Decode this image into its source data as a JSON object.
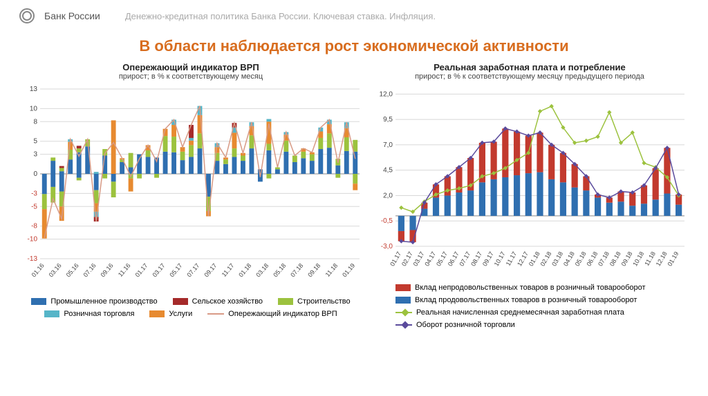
{
  "header": {
    "bank": "Банк России",
    "breadcrumb": "Денежно-кредитная политика Банка России. Ключевая ставка. Инфляция."
  },
  "main_title": "В области наблюдается рост экономической активности",
  "left_chart": {
    "type": "stacked_bar_with_line",
    "title": "Опережающий индикатор ВРП",
    "subtitle": "прирост; в % к соответствующему месяц",
    "x_labels": [
      "01.16",
      "03.16",
      "05.16",
      "07.16",
      "09.16",
      "11.16",
      "01.17",
      "03.17",
      "05.17",
      "07.17",
      "09.17",
      "11.17",
      "01.18",
      "03.18",
      "05.18",
      "07.18",
      "09.18",
      "11.18",
      "01.19"
    ],
    "y_ticks": [
      13,
      10,
      8,
      5,
      3,
      0,
      -3,
      -5,
      -8,
      -10,
      -13
    ],
    "y_min": -13,
    "y_max": 13,
    "background_color": "#ffffff",
    "grid_color": "#d8d8d8",
    "axis_label_fontsize": 10,
    "n_bars": 37,
    "bar_width": 0.55,
    "pos_segments_colors": [
      "#2f6fb0",
      "#9cc23e",
      "#e78a30",
      "#56b5c8",
      "#a52a2a"
    ],
    "neg_segments_colors": [
      "#2f6fb0",
      "#9cc23e",
      "#e78a30",
      "#56b5c8",
      "#a52a2a"
    ],
    "line_color": "#d89a85",
    "line_width": 1.5,
    "bars_pos": [
      [
        0,
        0,
        0,
        0,
        0
      ],
      [
        2,
        0.5,
        0,
        0,
        0
      ],
      [
        0.4,
        0.5,
        0,
        0,
        0.3
      ],
      [
        2.2,
        1.5,
        1.2,
        0.4,
        0
      ],
      [
        3.3,
        0.6,
        0,
        0,
        0.4
      ],
      [
        4.2,
        1.1,
        0,
        0,
        0
      ],
      [
        0,
        0,
        0,
        0.3,
        0
      ],
      [
        2.8,
        1.0,
        0,
        0,
        0
      ],
      [
        0,
        0,
        8.2,
        0,
        0
      ],
      [
        1.8,
        0.4,
        0.2,
        0,
        0
      ],
      [
        1.0,
        2.2,
        0,
        0,
        0
      ],
      [
        3.0,
        0,
        0,
        0,
        0
      ],
      [
        2.6,
        1.0,
        0.8,
        0,
        0
      ],
      [
        2.5,
        0,
        0,
        0,
        0
      ],
      [
        3.4,
        2.4,
        1.1,
        0,
        0
      ],
      [
        3.3,
        2.4,
        1.8,
        0.8,
        0
      ],
      [
        2.1,
        1.3,
        0.7,
        0,
        0
      ],
      [
        2.6,
        1.8,
        0.7,
        0.4,
        2.0
      ],
      [
        3.9,
        2.3,
        2.8,
        1.4,
        0
      ],
      [
        0,
        0,
        0,
        0,
        0
      ],
      [
        2.0,
        1.2,
        0.9,
        0.6,
        0
      ],
      [
        1.5,
        0.7,
        0.3,
        0,
        0
      ],
      [
        2.6,
        1.3,
        2.4,
        0.8,
        0.7
      ],
      [
        2.0,
        0.8,
        0.4,
        0,
        0
      ],
      [
        3.9,
        2.0,
        1.4,
        0.6,
        0
      ],
      [
        0.7,
        0,
        0,
        0,
        0
      ],
      [
        3.6,
        1.0,
        3.4,
        0.4,
        0
      ],
      [
        0.7,
        0.3,
        0,
        0,
        0
      ],
      [
        3.4,
        1.7,
        0.9,
        0.4,
        0
      ],
      [
        1.8,
        1.0,
        0,
        0,
        0
      ],
      [
        2.4,
        1.0,
        0.5,
        0,
        0
      ],
      [
        2.0,
        1.0,
        0.3,
        0,
        0
      ],
      [
        3.8,
        1.7,
        1.0,
        0.6,
        0
      ],
      [
        4.0,
        2.2,
        1.4,
        0.7,
        0
      ],
      [
        1.3,
        1.0,
        0,
        0,
        0
      ],
      [
        3.5,
        2.1,
        1.4,
        0.9,
        0
      ],
      [
        3.4,
        1.8,
        0,
        0,
        0
      ]
    ],
    "bars_neg": [
      [
        3.1,
        2.3,
        4.5,
        0,
        0
      ],
      [
        2.0,
        2.4,
        0,
        0,
        0
      ],
      [
        2.7,
        2.3,
        2.2,
        0,
        0
      ],
      [
        0,
        0,
        0,
        0,
        0
      ],
      [
        0.6,
        0.4,
        0,
        0,
        0
      ],
      [
        0,
        0,
        0,
        0,
        0
      ],
      [
        2.5,
        2.0,
        1.3,
        0.8,
        0.7
      ],
      [
        0,
        0.7,
        0,
        0,
        0
      ],
      [
        1.2,
        2.4,
        0,
        0,
        0
      ],
      [
        0,
        0,
        0,
        0,
        0
      ],
      [
        0,
        0.7,
        2.0,
        0,
        0
      ],
      [
        0,
        0.7,
        0,
        0,
        0
      ],
      [
        0,
        0,
        0,
        0,
        0
      ],
      [
        0,
        0.6,
        0,
        0,
        0
      ],
      [
        0,
        0,
        0,
        0,
        0
      ],
      [
        0,
        0,
        0,
        0,
        0
      ],
      [
        0,
        0,
        0,
        0,
        0
      ],
      [
        0,
        0,
        0,
        0,
        0
      ],
      [
        0,
        0,
        0,
        0,
        0
      ],
      [
        3.5,
        2.2,
        0.8,
        0,
        0
      ],
      [
        0,
        0,
        0,
        0,
        0
      ],
      [
        0,
        0,
        0,
        0,
        0
      ],
      [
        0,
        0,
        0,
        0,
        0
      ],
      [
        0,
        0,
        0,
        0,
        0
      ],
      [
        0,
        0,
        0,
        0,
        0
      ],
      [
        1.2,
        0,
        0,
        0,
        0
      ],
      [
        0,
        0.7,
        0,
        0,
        0
      ],
      [
        0,
        0,
        0,
        0,
        0
      ],
      [
        0,
        0,
        0,
        0,
        0
      ],
      [
        0,
        0,
        0,
        0,
        0
      ],
      [
        0,
        0,
        0,
        0,
        0
      ],
      [
        0,
        0,
        0,
        0,
        0
      ],
      [
        0,
        0,
        0,
        0,
        0
      ],
      [
        0,
        0,
        0,
        0,
        0
      ],
      [
        0,
        0.6,
        0,
        0,
        0
      ],
      [
        0,
        0,
        0,
        0,
        0
      ],
      [
        0,
        1.5,
        1.0,
        0,
        0
      ]
    ],
    "line": [
      -9.8,
      -3.8,
      -6.9,
      5.3,
      2.7,
      5.3,
      -7.3,
      3.1,
      4.8,
      2.4,
      -0.4,
      2.3,
      4.4,
      1.9,
      6.9,
      8.3,
      4.1,
      7.5,
      10.4,
      -6.5,
      4.7,
      2.5,
      7.8,
      3.2,
      7.9,
      -0.5,
      7.7,
      1.0,
      6.4,
      2.8,
      3.9,
      3.3,
      7.1,
      8.3,
      1.7,
      7.9,
      2.3
    ],
    "legend": [
      {
        "label": "Промышленное производство",
        "color": "#2f6fb0",
        "type": "bar"
      },
      {
        "label": "Сельское хозяйство",
        "color": "#a52a2a",
        "type": "bar"
      },
      {
        "label": "Строительство",
        "color": "#9cc23e",
        "type": "bar"
      },
      {
        "label": "Розничная торговля",
        "color": "#56b5c8",
        "type": "bar"
      },
      {
        "label": "Услуги",
        "color": "#e78a30",
        "type": "bar"
      },
      {
        "label": "Опережающий индикатор ВРП",
        "color": "#d89a85",
        "type": "line"
      }
    ]
  },
  "right_chart": {
    "type": "stacked_bar_with_two_lines",
    "title": "Реальная заработная плата и потребление",
    "subtitle": "прирост; в % к соответствующему месяцу предыдущего периода",
    "x_labels": [
      "01.17",
      "02.17",
      "03.17",
      "04.17",
      "05.17",
      "06.17",
      "07.17",
      "08.17",
      "09.17",
      "10.17",
      "11.17",
      "12.17",
      "01.18",
      "02.18",
      "03.18",
      "04.18",
      "05.18",
      "06.18",
      "07.18",
      "08.18",
      "09.18",
      "10.18",
      "11.18",
      "12.18",
      "01.19"
    ],
    "y_ticks": [
      12.0,
      9.5,
      7.0,
      4.5,
      2.0,
      -0.5,
      -3.0
    ],
    "y_min": -3.0,
    "y_max": 12.5,
    "background_color": "#ffffff",
    "grid_color": "#d8d8d8",
    "axis_label_fontsize": 10,
    "n_bars": 25,
    "bar_width": 0.55,
    "red_color": "#c23a2e",
    "blue_color": "#2f6fb0",
    "line1_color": "#9cc23e",
    "line1_marker": "diamond",
    "line2_color": "#5a4a9c",
    "line2_marker": "diamond",
    "line_width": 1.5,
    "marker_size": 3.2,
    "blue_vals": [
      -1.5,
      -1.4,
      0.7,
      1.8,
      2.0,
      2.3,
      2.5,
      3.3,
      3.6,
      3.8,
      4.0,
      4.2,
      4.3,
      3.6,
      3.3,
      2.8,
      2.5,
      1.8,
      1.3,
      1.4,
      1.0,
      1.2,
      1.6,
      2.2,
      1.1
    ],
    "red_vals": [
      -1.0,
      -1.2,
      0.6,
      1.3,
      1.9,
      2.5,
      3.2,
      3.9,
      3.7,
      4.8,
      4.3,
      3.7,
      3.9,
      3.4,
      2.9,
      2.3,
      1.4,
      0.3,
      0.5,
      1.0,
      1.3,
      1.8,
      3.1,
      4.5,
      1.0
    ],
    "line1": [
      0.8,
      0.4,
      1.4,
      2.1,
      2.5,
      2.7,
      3.0,
      3.9,
      4.2,
      4.7,
      5.5,
      6.2,
      10.3,
      10.8,
      8.7,
      7.2,
      7.4,
      7.8,
      10.2,
      7.2,
      8.2,
      5.2,
      4.8,
      3.8,
      2.0
    ],
    "line2": [
      -2.5,
      -2.6,
      1.3,
      3.1,
      3.9,
      4.8,
      5.7,
      7.2,
      7.3,
      8.6,
      8.3,
      7.9,
      8.2,
      7.0,
      6.2,
      5.1,
      3.9,
      2.1,
      1.8,
      2.4,
      2.3,
      3.0,
      4.7,
      6.7,
      2.1
    ],
    "legend": [
      {
        "label": "Вклад непродовольственных товаров в розничный товарооборот",
        "color": "#c23a2e",
        "type": "bar"
      },
      {
        "label": "Вклад продовольственных товаров в розничный товарооборот",
        "color": "#2f6fb0",
        "type": "bar"
      },
      {
        "label": "Реальная начисленная среднемесячная заработная плата",
        "color": "#9cc23e",
        "type": "line"
      },
      {
        "label": "Оборот розничной торговли",
        "color": "#5a4a9c",
        "type": "line"
      }
    ]
  }
}
